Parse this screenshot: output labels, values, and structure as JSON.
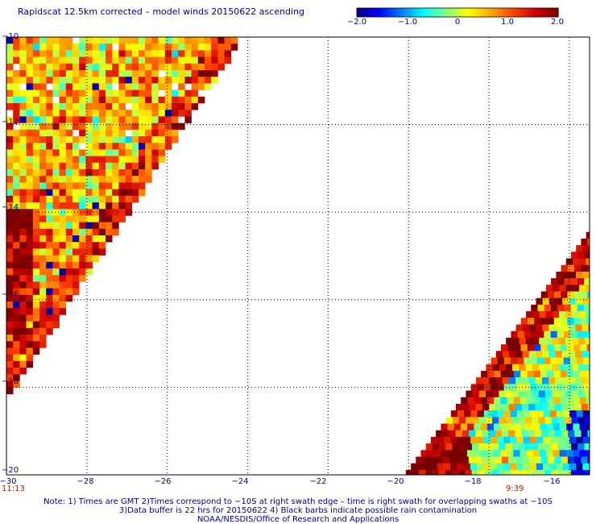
{
  "title": "Rapidscat 12.5km corrected – model winds 20150622 ascending",
  "colorbar": {
    "ticks": [
      {
        "v": -2.0,
        "label": "−2.0"
      },
      {
        "v": -1.0,
        "label": "−1.0"
      },
      {
        "v": 0,
        "label": "0"
      },
      {
        "v": 1.0,
        "label": "1.0"
      },
      {
        "v": 2.0,
        "label": "2.0"
      }
    ],
    "colors": [
      "#00008b",
      "#0000ff",
      "#0080ff",
      "#00ffff",
      "#80ff80",
      "#ffff00",
      "#ffa500",
      "#ff4000",
      "#cc0000",
      "#7a0000"
    ]
  },
  "axes": {
    "x_ticks": [
      "−30",
      "−28",
      "−26",
      "−24",
      "−22",
      "−20",
      "−18",
      "−16"
    ],
    "y_ticks": [
      "−10",
      "−12",
      "−14",
      "−16",
      "−18",
      "−20"
    ]
  },
  "times": {
    "left": "11:13",
    "right": "9:39"
  },
  "notes": [
    "Note: 1) Times are GMT 2)Times correspond to −10S at right swath edge – time is right swath for overlapping swaths at −10S",
    "3)Data buffer is 22 hrs for 20150622 4) Black barbs indicate possible rain contamination",
    "NOAA/NESDIS/Office of Research and Applications"
  ],
  "chart_data": {
    "type": "heatmap",
    "title": "Rapidscat 12.5km corrected – model winds 20150622 ascending",
    "x_range": [
      -30,
      -15.5
    ],
    "y_range": [
      -20,
      -10
    ],
    "value_range": [
      -2.0,
      2.0
    ],
    "grid": true,
    "swaths": [
      {
        "name": "left swath",
        "time": "11:13",
        "lon_range": [
          -30,
          -24
        ],
        "lat_range": [
          -18.2,
          -10
        ]
      },
      {
        "name": "right swath",
        "time": "9:39",
        "lon_range": [
          -20,
          -15.5
        ],
        "lat_range": [
          -20,
          -14.3
        ]
      }
    ]
  }
}
